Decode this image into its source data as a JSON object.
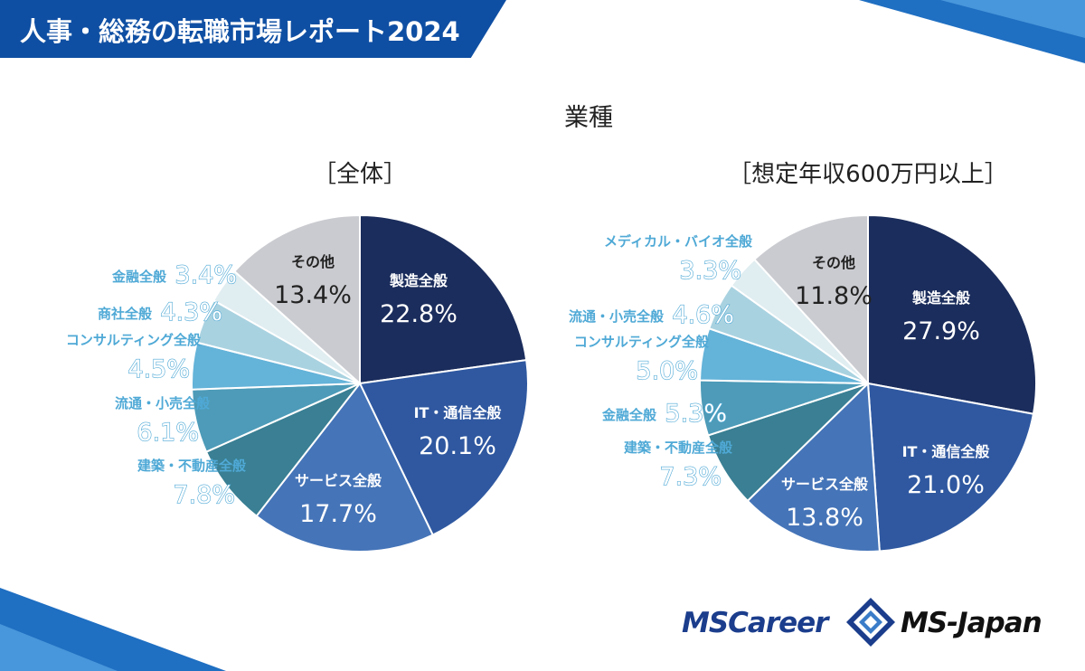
{
  "header": {
    "title": "人事・総務の転職市場レポート2024",
    "accent_color": "#0f4fa3"
  },
  "page_title": "業種",
  "chart_data": [
    {
      "type": "pie",
      "title": "［全体］",
      "unit": "%",
      "slices": [
        {
          "label": "製造全般",
          "value": 22.8,
          "display": "22.8%",
          "color": "#1b2d5c"
        },
        {
          "label": "IT・通信全般",
          "value": 20.1,
          "display": "20.1%",
          "color": "#2f58a0"
        },
        {
          "label": "サービス全般",
          "value": 17.7,
          "display": "17.7%",
          "color": "#4574b8"
        },
        {
          "label": "建築・不動産全般",
          "value": 7.8,
          "display": "7.8%",
          "color": "#3a7f93"
        },
        {
          "label": "流通・小売全般",
          "value": 6.1,
          "display": "6.1%",
          "color": "#4d9bb8"
        },
        {
          "label": "コンサルティング全般",
          "value": 4.5,
          "display": "4.5%",
          "color": "#64b3d9"
        },
        {
          "label": "商社全般",
          "value": 4.3,
          "display": "4.3%",
          "color": "#a9d2e0"
        },
        {
          "label": "金融全般",
          "value": 3.4,
          "display": "3.4%",
          "color": "#e0edf1"
        },
        {
          "label": "その他",
          "value": 13.4,
          "display": "13.4%",
          "color": "#cacbd0"
        }
      ]
    },
    {
      "type": "pie",
      "title": "［想定年収600万円以上］",
      "unit": "%",
      "slices": [
        {
          "label": "製造全般",
          "value": 27.9,
          "display": "27.9%",
          "color": "#1b2d5c"
        },
        {
          "label": "IT・通信全般",
          "value": 21.0,
          "display": "21.0%",
          "color": "#2f58a0"
        },
        {
          "label": "サービス全般",
          "value": 13.8,
          "display": "13.8%",
          "color": "#4574b8"
        },
        {
          "label": "建築・不動産全般",
          "value": 7.3,
          "display": "7.3%",
          "color": "#3a7f93"
        },
        {
          "label": "金融全般",
          "value": 5.3,
          "display": "5.3%",
          "color": "#4d9bb8"
        },
        {
          "label": "コンサルティング全般",
          "value": 5.0,
          "display": "5.0%",
          "color": "#64b3d9"
        },
        {
          "label": "流通・小売全般",
          "value": 4.6,
          "display": "4.6%",
          "color": "#a9d2e0"
        },
        {
          "label": "メディカル・バイオ全般",
          "value": 3.3,
          "display": "3.3%",
          "color": "#e0edf1"
        },
        {
          "label": "その他",
          "value": 11.8,
          "display": "11.8%",
          "color": "#cacbd0"
        }
      ]
    }
  ],
  "logos": {
    "mscareer": "MSCareer",
    "msjapan": "MS-Japan"
  }
}
